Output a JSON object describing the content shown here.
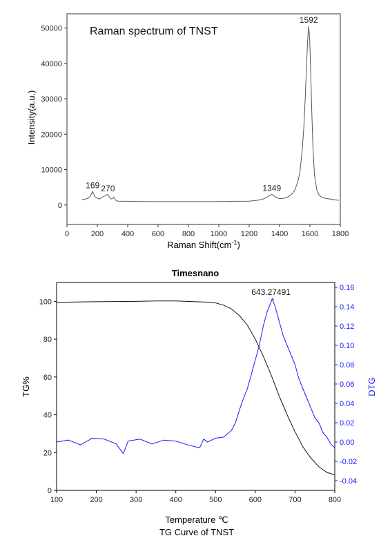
{
  "chart_data": [
    {
      "type": "line",
      "title": "Raman spectrum of TNST",
      "xlabel": "Raman Shift(cm",
      "xlabel_sup": "-1",
      "xlabel_close": ")",
      "ylabel": "Intensity(a.u.)",
      "xlim": [
        0,
        1800
      ],
      "ylim": [
        -5500,
        54000
      ],
      "x_ticks": [
        0,
        200,
        400,
        600,
        800,
        1000,
        1200,
        1400,
        1600,
        1800
      ],
      "y_ticks": [
        0,
        10000,
        20000,
        30000,
        40000,
        50000
      ],
      "grid": false,
      "series": [
        {
          "color": "#555555",
          "x": [
            100,
            120,
            140,
            150,
            160,
            169,
            175,
            185,
            200,
            215,
            230,
            250,
            262,
            270,
            280,
            290,
            300,
            310,
            318,
            325,
            340,
            360,
            400,
            450,
            500,
            550,
            600,
            650,
            700,
            750,
            800,
            850,
            900,
            950,
            1000,
            1050,
            1100,
            1150,
            1200,
            1250,
            1280,
            1300,
            1320,
            1335,
            1349,
            1360,
            1375,
            1400,
            1430,
            1460,
            1480,
            1500,
            1520,
            1535,
            1550,
            1560,
            1570,
            1578,
            1585,
            1592,
            1598,
            1605,
            1612,
            1620,
            1630,
            1645,
            1660,
            1680,
            1700,
            1730,
            1760,
            1790
          ],
          "y": [
            1500,
            1650,
            1900,
            2300,
            3000,
            3800,
            3200,
            2300,
            1900,
            1700,
            2100,
            2600,
            2900,
            2900,
            2200,
            1700,
            1800,
            2200,
            1500,
            1200,
            1100,
            1050,
            1050,
            1000,
            1000,
            950,
            950,
            950,
            950,
            950,
            950,
            950,
            950,
            950,
            1000,
            1000,
            1050,
            1050,
            1100,
            1300,
            1550,
            1800,
            2300,
            2700,
            3000,
            2700,
            2200,
            1800,
            1900,
            2400,
            3000,
            4200,
            6500,
            9500,
            16000,
            22000,
            31000,
            40000,
            46500,
            50500,
            47000,
            38000,
            27000,
            16000,
            8500,
            4300,
            2800,
            2100,
            1900,
            1700,
            1500,
            1300
          ]
        }
      ],
      "annotations": [
        {
          "label": "169",
          "x": 169,
          "y": 3800
        },
        {
          "label": "270",
          "x": 270,
          "y": 2900
        },
        {
          "label": "1349",
          "x": 1349,
          "y": 3000
        },
        {
          "label": "1592",
          "x": 1592,
          "y": 50500
        }
      ]
    },
    {
      "type": "line",
      "title": "Timesnano",
      "xlabel": "Temperature ℃",
      "ylabel": "TG%",
      "ylabel_right": "DTG",
      "caption": "TG Curve of TNST",
      "xlim": [
        100,
        800
      ],
      "ylim": [
        0,
        110
      ],
      "y2lim": [
        -0.05,
        0.165
      ],
      "x_ticks": [
        100,
        200,
        300,
        400,
        500,
        600,
        700,
        800
      ],
      "y_ticks": [
        0,
        20,
        40,
        60,
        80,
        100
      ],
      "y2_ticks": [
        -0.04,
        -0.02,
        0.0,
        0.02,
        0.04,
        0.06,
        0.08,
        0.1,
        0.12,
        0.14,
        0.16
      ],
      "y2_tick_labels": [
        "-0.04",
        "-0.02",
        "0.00",
        "0.02",
        "0.04",
        "0.06",
        "0.08",
        "0.10",
        "0.12",
        "0.14",
        "0.16"
      ],
      "grid": false,
      "series": [
        {
          "axis": "left",
          "color": "#111111",
          "x": [
            100,
            150,
            200,
            250,
            300,
            350,
            400,
            450,
            480,
            500,
            520,
            540,
            560,
            580,
            600,
            620,
            640,
            660,
            680,
            700,
            720,
            740,
            760,
            780,
            800
          ],
          "y": [
            99.5,
            99.7,
            99.8,
            99.9,
            100.0,
            100.2,
            100.2,
            99.8,
            99.6,
            99.2,
            98.0,
            96.0,
            92.5,
            87.5,
            80.0,
            71.0,
            61.0,
            50.0,
            40.0,
            31.0,
            23.0,
            17.0,
            12.5,
            9.5,
            8.2
          ]
        },
        {
          "axis": "right",
          "color": "#1a1aff",
          "x": [
            100,
            130,
            160,
            190,
            220,
            250,
            268,
            280,
            310,
            340,
            370,
            400,
            430,
            460,
            470,
            480,
            500,
            520,
            540,
            550,
            560,
            570,
            580,
            590,
            600,
            610,
            620,
            630,
            643,
            650,
            660,
            670,
            680,
            690,
            700,
            710,
            720,
            730,
            740,
            750,
            760,
            770,
            780,
            790,
            800
          ],
          "y": [
            0.0,
            0.002,
            -0.003,
            0.004,
            0.003,
            -0.002,
            -0.012,
            0.001,
            0.003,
            -0.002,
            0.002,
            0.001,
            -0.003,
            -0.006,
            0.003,
            0.0,
            0.004,
            0.005,
            0.012,
            0.02,
            0.033,
            0.045,
            0.055,
            0.07,
            0.085,
            0.1,
            0.12,
            0.135,
            0.148,
            0.14,
            0.125,
            0.11,
            0.1,
            0.09,
            0.08,
            0.065,
            0.055,
            0.045,
            0.035,
            0.025,
            0.02,
            0.01,
            0.005,
            -0.002,
            -0.006
          ]
        }
      ],
      "annotations": [
        {
          "label": "643.27491",
          "x": 643,
          "y": 0.148
        }
      ]
    }
  ]
}
